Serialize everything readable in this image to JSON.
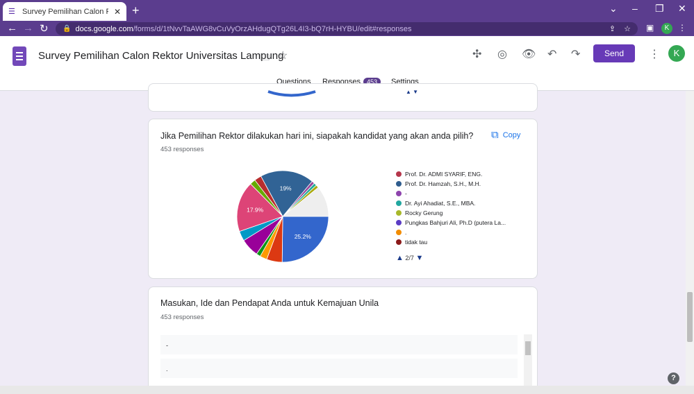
{
  "browser": {
    "tab_title": "Survey Pemilihan Calon Rektor Ur",
    "tab_favicon": "forms-icon",
    "url_host": "docs.google.com",
    "url_path": "/forms/d/1tNvvTaAWG8vCuVyOrzAHdugQTg26L4I3-bQ7rH-HYBU/edit#responses",
    "profile_initial": "K"
  },
  "header": {
    "doc_title": "Survey Pemilihan Calon Rektor Universitas Lampung",
    "send_label": "Send",
    "avatar_initial": "K",
    "tabs": [
      {
        "label": "Questions"
      },
      {
        "label": "Responses",
        "badge": "453"
      },
      {
        "label": "Settings"
      }
    ]
  },
  "question1": {
    "title": "Jika Pemilihan Rektor dilakukan hari ini, siapakah kandidat yang akan anda pilih?",
    "response_count": "453 responses",
    "copy_label": "Copy",
    "legend_page": "2/7",
    "legend": [
      {
        "label": "Prof. Dr. ADMI SYARIF, ENG.",
        "color": "#b5364b"
      },
      {
        "label": "Prof. Dr. Hamzah, S.H., M.H.",
        "color": "#2f5d8e"
      },
      {
        "label": "-",
        "color": "#8e44ad"
      },
      {
        "label": "Dr. Ayi Ahadiat, S.E., MBA.",
        "color": "#22a7a0"
      },
      {
        "label": "Rocky Gerung",
        "color": "#a8b82a"
      },
      {
        "label": "Pungkas Bahjuri Ali, Ph.D (putera La...",
        "color": "#5b3cc4"
      },
      {
        "label": ".",
        "color": "#f28c00"
      },
      {
        "label": "tidak tau",
        "color": "#8b1a1a"
      }
    ]
  },
  "chart_data": {
    "type": "pie",
    "labels_shown": [
      "25.2%",
      "19%",
      "17.9%"
    ],
    "slices": [
      {
        "label": "25.2%",
        "value": 25.2,
        "color": "#3366cc"
      },
      {
        "label": "",
        "value": 5.5,
        "color": "#dc3912"
      },
      {
        "label": "",
        "value": 2.5,
        "color": "#ff9900"
      },
      {
        "label": "",
        "value": 1.5,
        "color": "#109618"
      },
      {
        "label": "",
        "value": 6.5,
        "color": "#990099"
      },
      {
        "label": "",
        "value": 3.5,
        "color": "#0099c6"
      },
      {
        "label": "17.9%",
        "value": 17.9,
        "color": "#dd4477"
      },
      {
        "label": "",
        "value": 2.0,
        "color": "#66aa00"
      },
      {
        "label": "",
        "value": 2.5,
        "color": "#b82e2e"
      },
      {
        "label": "19%",
        "value": 19.0,
        "color": "#316395"
      },
      {
        "label": "",
        "value": 1.0,
        "color": "#994499"
      },
      {
        "label": "",
        "value": 1.0,
        "color": "#22aa99"
      },
      {
        "label": "",
        "value": 1.0,
        "color": "#aaaa11"
      },
      {
        "label": "",
        "value": 10.9,
        "color": "#eeeeee"
      }
    ]
  },
  "question2": {
    "title": "Masukan, Ide dan Pendapat Anda untuk Kemajuan Unila",
    "response_count": "453 responses",
    "answers": [
      "-",
      "."
    ]
  }
}
